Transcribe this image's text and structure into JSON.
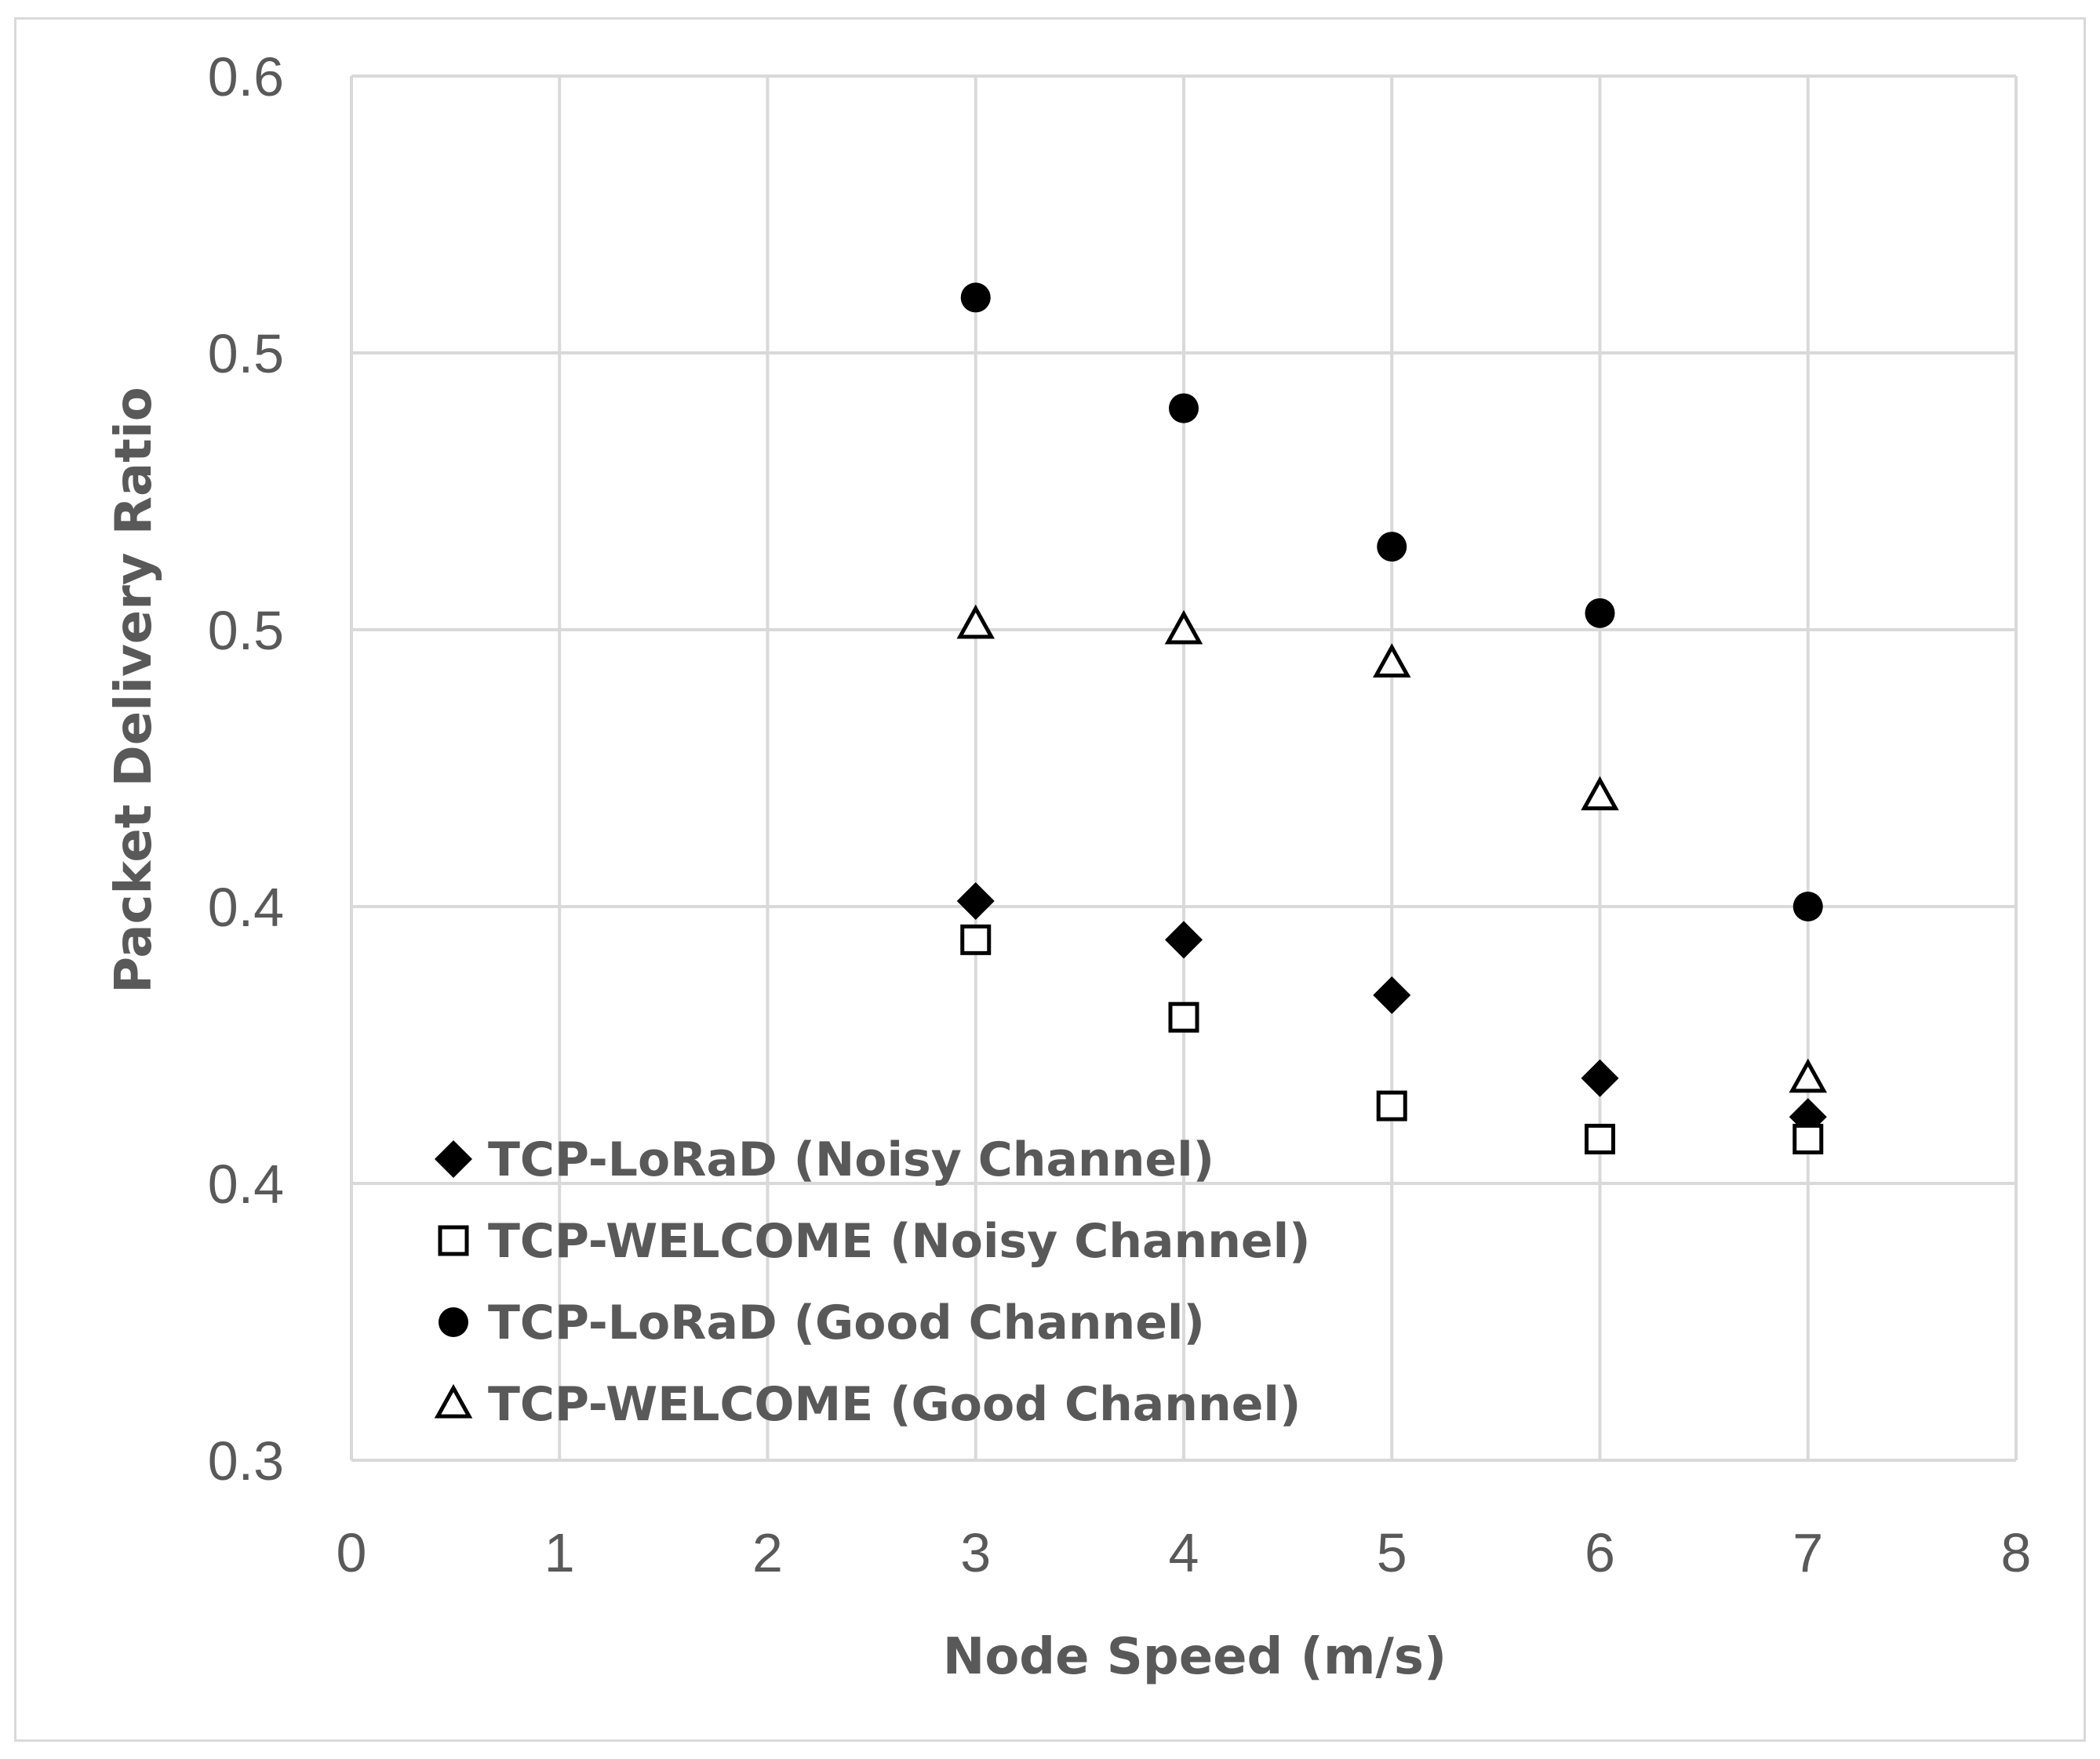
{
  "chart_data": {
    "type": "scatter",
    "xlabel": "Node Speed (m/s)",
    "ylabel": "Packet Delivery Ratio",
    "xlim": [
      0,
      8
    ],
    "x_ticks": [
      "0",
      "1",
      "2",
      "3",
      "4",
      "5",
      "6",
      "7",
      "8"
    ],
    "y_tick_labels": [
      "0.3",
      "0.4",
      "0.4",
      "0.5",
      "0.5",
      "0.6"
    ],
    "ylim": [
      0.3,
      0.55
    ],
    "grid": true,
    "legend_position": "bottom-left",
    "series": [
      {
        "name": "TCP-LoRaD (Noisy Channel)",
        "marker": "diamond-filled",
        "x": [
          3,
          4,
          5,
          6,
          7
        ],
        "y": [
          0.401,
          0.394,
          0.384,
          0.369,
          0.362
        ]
      },
      {
        "name": "TCP-WELCOME (Noisy Channel)",
        "marker": "square-open",
        "x": [
          3,
          4,
          5,
          6,
          7
        ],
        "y": [
          0.394,
          0.38,
          0.364,
          0.358,
          0.358
        ]
      },
      {
        "name": "TCP-LoRaD (Good Channel)",
        "marker": "circle-filled",
        "x": [
          3,
          4,
          5,
          6,
          7
        ],
        "y": [
          0.51,
          0.49,
          0.465,
          0.453,
          0.4
        ]
      },
      {
        "name": "TCP-WELCOME (Good Channel)",
        "marker": "triangle-open",
        "x": [
          3,
          4,
          5,
          6,
          7
        ],
        "y": [
          0.451,
          0.45,
          0.444,
          0.42,
          0.369
        ]
      }
    ]
  }
}
